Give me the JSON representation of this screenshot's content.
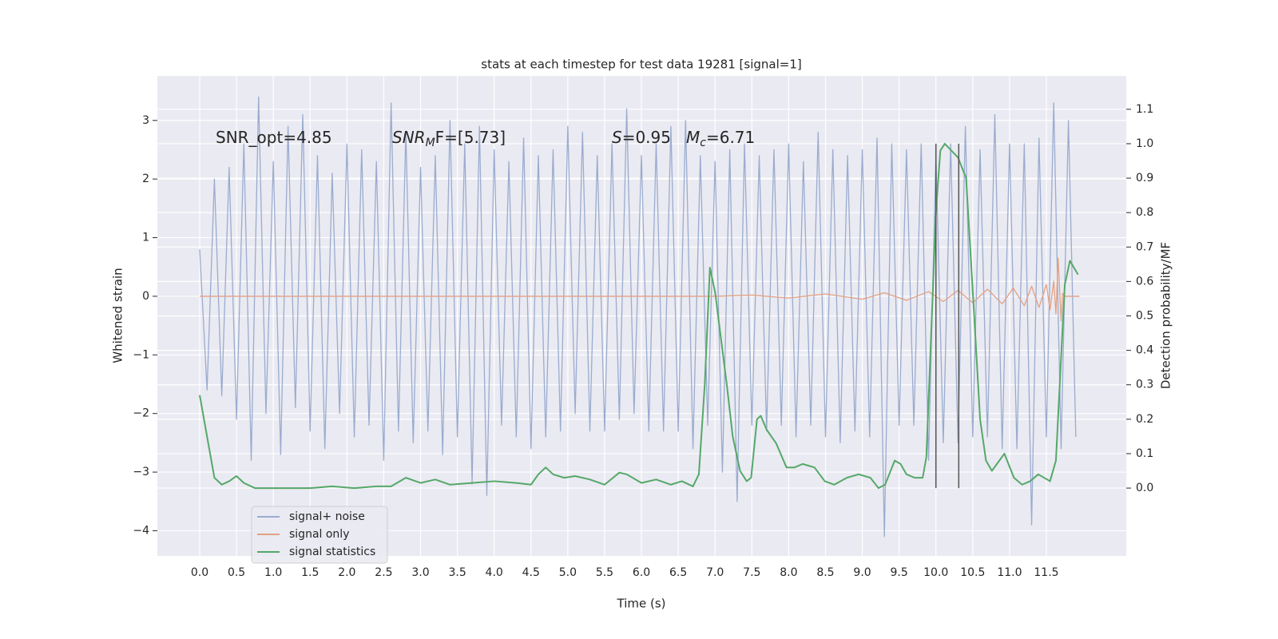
{
  "chart_data": {
    "type": "line",
    "title": "stats at each timestep for test data 19281 [signal=1]",
    "xlabel": "Time (s)",
    "ylabel": "Whitened strain",
    "y2label": "Detection probability/MF",
    "xlim": [
      -0.575,
      12.585
    ],
    "ylim": [
      -4.43,
      3.76
    ],
    "y2lim": [
      -0.197,
      1.197
    ],
    "xticks": [
      {
        "value": 0,
        "label": "0.0"
      },
      0.5,
      {
        "value": 1,
        "label": "1.0"
      },
      1.5,
      {
        "value": 2,
        "label": "2.0"
      },
      2.5,
      {
        "value": 3,
        "label": "3.0"
      },
      3.5,
      {
        "value": 4,
        "label": "4.0"
      },
      4.5,
      {
        "value": 5,
        "label": "5.0"
      },
      5.5,
      {
        "value": 6,
        "label": "6.0"
      },
      6.5,
      {
        "value": 7,
        "label": "7.0"
      },
      7.5,
      {
        "value": 8,
        "label": "8.0"
      },
      8.5,
      {
        "value": 9,
        "label": "9.0"
      },
      9.5,
      {
        "value": 10,
        "label": "10.0"
      },
      10.5,
      {
        "value": 11,
        "label": "11.0"
      },
      11.5
    ],
    "yticks": [
      {
        "value": -4,
        "label": "−4"
      },
      {
        "value": -3,
        "label": "−3"
      },
      {
        "value": -2,
        "label": "−2"
      },
      {
        "value": -1,
        "label": "−1"
      },
      0,
      1,
      2,
      3
    ],
    "y2ticks": [
      {
        "value": 0,
        "label": "0.0"
      },
      0.1,
      0.2,
      0.3,
      0.4,
      0.5,
      0.6,
      0.7,
      0.8,
      0.9,
      {
        "value": 1,
        "label": "1.0"
      },
      1.1
    ],
    "grid": true,
    "legend": "lower left",
    "annotations": [
      {
        "base": "SNR_opt=4.85"
      },
      {
        "base": "SNR",
        "sub": "M",
        "rest": "F=[5.73]",
        "math": true
      },
      {
        "base": "S",
        "rest": "=0.95",
        "math": true
      },
      {
        "base": "M",
        "sub": "c",
        "rest": "=6.71",
        "math": true
      }
    ],
    "vlines": {
      "x": [
        10.0,
        10.31
      ],
      "y2": [
        0,
        1.0
      ],
      "color": "#555555"
    },
    "series": [
      {
        "name": "signal+ noise",
        "color": "#9aaccf",
        "x": [
          0,
          0.1,
          0.2,
          0.3,
          0.4,
          0.5,
          0.6,
          0.7,
          0.8,
          0.9,
          1,
          1.1,
          1.2,
          1.3,
          1.4,
          1.5,
          1.6,
          1.7,
          1.8,
          1.9,
          2,
          2.1,
          2.2,
          2.3,
          2.4,
          2.5,
          2.6,
          2.7,
          2.8,
          2.9,
          3,
          3.1,
          3.2,
          3.3,
          3.4,
          3.5,
          3.6,
          3.7,
          3.8,
          3.9,
          4,
          4.1,
          4.2,
          4.3,
          4.4,
          4.5,
          4.6,
          4.7,
          4.8,
          4.9,
          5,
          5.1,
          5.2,
          5.3,
          5.4,
          5.5,
          5.6,
          5.7,
          5.8,
          5.9,
          6,
          6.1,
          6.2,
          6.3,
          6.4,
          6.5,
          6.6,
          6.7,
          6.8,
          6.9,
          7,
          7.1,
          7.2,
          7.3,
          7.4,
          7.5,
          7.6,
          7.7,
          7.8,
          7.9,
          8,
          8.1,
          8.2,
          8.3,
          8.4,
          8.5,
          8.6,
          8.7,
          8.8,
          8.9,
          9,
          9.1,
          9.2,
          9.3,
          9.4,
          9.5,
          9.6,
          9.7,
          9.8,
          9.9,
          10,
          10.1,
          10.2,
          10.3,
          10.4,
          10.5,
          10.6,
          10.7,
          10.8,
          10.9,
          11,
          11.1,
          11.2,
          11.3,
          11.4,
          11.5,
          11.6,
          11.7,
          11.8,
          11.9
        ],
        "values": [
          0.8,
          -1.6,
          2.0,
          -1.7,
          2.2,
          -2.1,
          2.6,
          -2.8,
          3.4,
          -2.0,
          2.3,
          -2.7,
          2.9,
          -1.9,
          3.1,
          -2.3,
          2.4,
          -2.6,
          2.1,
          -2.0,
          2.6,
          -2.4,
          2.5,
          -2.2,
          2.3,
          -2.8,
          3.3,
          -2.3,
          2.8,
          -2.5,
          2.2,
          -2.3,
          2.4,
          -2.7,
          3.0,
          -2.4,
          2.6,
          -3.2,
          2.9,
          -3.4,
          2.5,
          -2.2,
          2.3,
          -2.4,
          2.7,
          -2.6,
          2.4,
          -2.4,
          2.5,
          -2.3,
          2.9,
          -2.0,
          2.8,
          -2.3,
          2.4,
          -2.3,
          2.6,
          -2.1,
          3.2,
          -2.0,
          2.4,
          -2.3,
          2.6,
          -2.3,
          2.9,
          -2.3,
          3.0,
          -2.6,
          2.4,
          -2.2,
          2.3,
          -3.0,
          2.5,
          -3.5,
          2.6,
          -2.2,
          2.4,
          -2.3,
          2.5,
          -2.2,
          2.6,
          -2.4,
          2.3,
          -2.2,
          2.8,
          -2.4,
          2.5,
          -2.5,
          2.4,
          -2.3,
          2.5,
          -2.4,
          2.7,
          -4.1,
          2.6,
          -2.2,
          2.5,
          -2.2,
          2.6,
          -2.8,
          2.4,
          -2.5,
          2.6,
          -2.5,
          2.9,
          -2.4,
          2.5,
          -2.4,
          3.1,
          -2.6,
          2.6,
          -2.6,
          2.6,
          -3.9,
          2.7,
          -2.4,
          3.3,
          -2.6,
          3.0,
          -2.4
        ]
      },
      {
        "name": "signal only",
        "color": "#e3a183",
        "x": [
          0,
          7.0,
          7.5,
          8.0,
          8.5,
          9.0,
          9.3,
          9.6,
          9.9,
          10.1,
          10.3,
          10.5,
          10.7,
          10.9,
          11.05,
          11.2,
          11.3,
          11.4,
          11.5,
          11.55,
          11.6,
          11.63,
          11.66,
          11.7,
          11.72,
          11.75,
          11.95
        ],
        "values": [
          0,
          0,
          0.02,
          -0.03,
          0.04,
          -0.05,
          0.06,
          -0.07,
          0.08,
          -0.09,
          0.1,
          -0.11,
          0.12,
          -0.13,
          0.14,
          -0.16,
          0.17,
          -0.19,
          0.2,
          -0.23,
          0.26,
          -0.3,
          0.65,
          -0.42,
          0.05,
          0,
          0
        ]
      },
      {
        "name": "signal statistics",
        "color": "#55a868",
        "axis": "y2",
        "x": [
          0,
          0.1,
          0.2,
          0.3,
          0.4,
          0.5,
          0.6,
          0.75,
          1.0,
          1.2,
          1.5,
          1.8,
          2.1,
          2.4,
          2.6,
          2.8,
          3.0,
          3.2,
          3.4,
          3.7,
          4.0,
          4.3,
          4.5,
          4.6,
          4.7,
          4.8,
          4.95,
          5.1,
          5.3,
          5.5,
          5.7,
          5.8,
          6.0,
          6.2,
          6.4,
          6.55,
          6.7,
          6.78,
          6.86,
          6.93,
          7.0,
          7.16,
          7.24,
          7.34,
          7.43,
          7.49,
          7.57,
          7.62,
          7.7,
          7.83,
          7.97,
          8.08,
          8.19,
          8.35,
          8.49,
          8.62,
          8.79,
          8.95,
          9.11,
          9.22,
          9.31,
          9.44,
          9.52,
          9.6,
          9.71,
          9.82,
          9.87,
          10.0,
          10.06,
          10.12,
          10.3,
          10.41,
          10.52,
          10.6,
          10.68,
          10.76,
          10.93,
          11.06,
          11.17,
          11.28,
          11.39,
          11.55,
          11.63,
          11.75,
          11.82,
          11.93
        ],
        "values": [
          0.27,
          0.15,
          0.03,
          0.01,
          0.02,
          0.035,
          0.015,
          0.0,
          0.0,
          0.0,
          0.0,
          0.005,
          0.0,
          0.005,
          0.005,
          0.03,
          0.015,
          0.025,
          0.01,
          0.015,
          0.02,
          0.015,
          0.01,
          0.04,
          0.06,
          0.04,
          0.03,
          0.035,
          0.025,
          0.01,
          0.045,
          0.04,
          0.015,
          0.025,
          0.01,
          0.02,
          0.005,
          0.04,
          0.3,
          0.64,
          0.57,
          0.3,
          0.15,
          0.05,
          0.02,
          0.03,
          0.2,
          0.21,
          0.17,
          0.13,
          0.06,
          0.06,
          0.07,
          0.06,
          0.02,
          0.01,
          0.03,
          0.04,
          0.03,
          0.0,
          0.01,
          0.08,
          0.07,
          0.04,
          0.03,
          0.03,
          0.09,
          0.8,
          0.98,
          1.0,
          0.96,
          0.9,
          0.5,
          0.2,
          0.08,
          0.05,
          0.1,
          0.03,
          0.01,
          0.02,
          0.04,
          0.02,
          0.08,
          0.59,
          0.66,
          0.62
        ]
      }
    ]
  }
}
